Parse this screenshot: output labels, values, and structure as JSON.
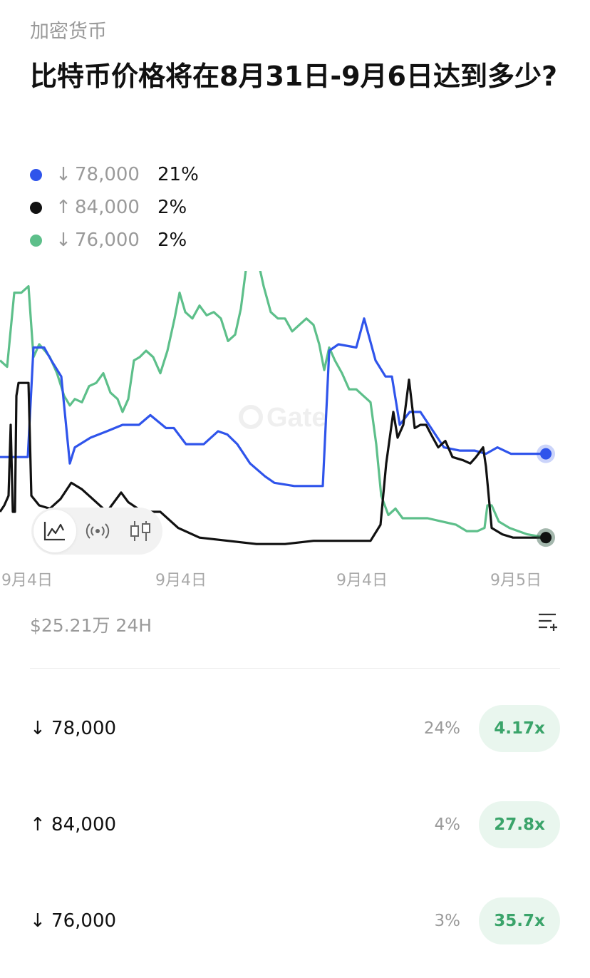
{
  "header": {
    "category": "加密货币",
    "title": "比特币价格将在8月31日-9月6日达到多少?"
  },
  "legend": [
    {
      "arrow": "↓",
      "value": "78,000",
      "pct": "21%",
      "color": "#2f54eb"
    },
    {
      "arrow": "↑",
      "value": "84,000",
      "pct": "2%",
      "color": "#111111"
    },
    {
      "arrow": "↓",
      "value": "76,000",
      "pct": "2%",
      "color": "#5dbf8a"
    }
  ],
  "chart_data": {
    "type": "line",
    "x_tick_labels": [
      "9月4日",
      "9月4日",
      "9月4日",
      "9月5日"
    ],
    "watermark": "Gate",
    "series": [
      {
        "color": "#2f54eb",
        "points": [
          [
            0,
            0.17
          ],
          [
            39,
            0.17
          ],
          [
            47,
            0.51
          ],
          [
            62,
            0.51
          ],
          [
            72,
            0.47
          ],
          [
            86,
            0.42
          ],
          [
            98,
            0.15
          ],
          [
            105,
            0.2
          ],
          [
            127,
            0.23
          ],
          [
            150,
            0.25
          ],
          [
            172,
            0.27
          ],
          [
            195,
            0.27
          ],
          [
            211,
            0.3
          ],
          [
            233,
            0.26
          ],
          [
            244,
            0.26
          ],
          [
            261,
            0.21
          ],
          [
            286,
            0.21
          ],
          [
            306,
            0.25
          ],
          [
            319,
            0.24
          ],
          [
            333,
            0.21
          ],
          [
            351,
            0.15
          ],
          [
            372,
            0.11
          ],
          [
            385,
            0.09
          ],
          [
            413,
            0.08
          ],
          [
            453,
            0.08
          ],
          [
            462,
            0.5
          ],
          [
            475,
            0.52
          ],
          [
            500,
            0.51
          ],
          [
            511,
            0.6
          ],
          [
            527,
            0.47
          ],
          [
            541,
            0.42
          ],
          [
            550,
            0.42
          ],
          [
            561,
            0.27
          ],
          [
            575,
            0.31
          ],
          [
            590,
            0.31
          ],
          [
            623,
            0.2
          ],
          [
            645,
            0.19
          ],
          [
            666,
            0.19
          ],
          [
            682,
            0.18
          ],
          [
            698,
            0.2
          ],
          [
            717,
            0.18
          ],
          [
            740,
            0.18
          ],
          [
            766,
            0.18
          ]
        ]
      },
      {
        "color": "#111111",
        "points": [
          [
            0,
            0.0
          ],
          [
            6,
            0.02
          ],
          [
            12,
            0.05
          ],
          [
            15,
            0.27
          ],
          [
            18,
            0.0
          ],
          [
            21,
            0.0
          ],
          [
            23,
            0.36
          ],
          [
            26,
            0.4
          ],
          [
            32,
            0.4
          ],
          [
            36,
            0.4
          ],
          [
            40,
            0.4
          ],
          [
            44,
            0.05
          ],
          [
            55,
            0.02
          ],
          [
            70,
            0.01
          ],
          [
            85,
            0.04
          ],
          [
            100,
            0.09
          ],
          [
            115,
            0.07
          ],
          [
            130,
            0.04
          ],
          [
            150,
            0.0
          ],
          [
            170,
            0.06
          ],
          [
            180,
            0.03
          ],
          [
            200,
            0.0
          ],
          [
            225,
            0.0
          ],
          [
            250,
            -0.05
          ],
          [
            280,
            -0.08
          ],
          [
            320,
            -0.09
          ],
          [
            360,
            -0.1
          ],
          [
            400,
            -0.1
          ],
          [
            440,
            -0.09
          ],
          [
            480,
            -0.09
          ],
          [
            520,
            -0.09
          ],
          [
            534,
            -0.04
          ],
          [
            542,
            0.15
          ],
          [
            552,
            0.31
          ],
          [
            558,
            0.23
          ],
          [
            566,
            0.27
          ],
          [
            574,
            0.41
          ],
          [
            582,
            0.26
          ],
          [
            590,
            0.27
          ],
          [
            598,
            0.27
          ],
          [
            605,
            0.24
          ],
          [
            615,
            0.2
          ],
          [
            625,
            0.22
          ],
          [
            635,
            0.17
          ],
          [
            650,
            0.16
          ],
          [
            660,
            0.15
          ],
          [
            668,
            0.17
          ],
          [
            678,
            0.2
          ],
          [
            682,
            0.14
          ],
          [
            690,
            -0.05
          ],
          [
            705,
            -0.07
          ],
          [
            720,
            -0.08
          ],
          [
            745,
            -0.08
          ],
          [
            766,
            -0.08
          ]
        ]
      },
      {
        "color": "#5dbf8a",
        "points": [
          [
            0,
            0.47
          ],
          [
            10,
            0.45
          ],
          [
            20,
            0.68
          ],
          [
            30,
            0.68
          ],
          [
            40,
            0.7
          ],
          [
            47,
            0.48
          ],
          [
            55,
            0.52
          ],
          [
            63,
            0.5
          ],
          [
            70,
            0.48
          ],
          [
            80,
            0.43
          ],
          [
            90,
            0.36
          ],
          [
            98,
            0.33
          ],
          [
            105,
            0.35
          ],
          [
            115,
            0.34
          ],
          [
            125,
            0.39
          ],
          [
            135,
            0.4
          ],
          [
            145,
            0.43
          ],
          [
            155,
            0.37
          ],
          [
            165,
            0.35
          ],
          [
            172,
            0.31
          ],
          [
            180,
            0.35
          ],
          [
            188,
            0.47
          ],
          [
            196,
            0.48
          ],
          [
            205,
            0.5
          ],
          [
            215,
            0.48
          ],
          [
            225,
            0.43
          ],
          [
            235,
            0.5
          ],
          [
            245,
            0.6
          ],
          [
            252,
            0.68
          ],
          [
            260,
            0.62
          ],
          [
            270,
            0.6
          ],
          [
            280,
            0.64
          ],
          [
            290,
            0.61
          ],
          [
            300,
            0.62
          ],
          [
            310,
            0.6
          ],
          [
            320,
            0.53
          ],
          [
            330,
            0.55
          ],
          [
            338,
            0.63
          ],
          [
            345,
            0.75
          ],
          [
            352,
            0.84
          ],
          [
            360,
            0.8
          ],
          [
            370,
            0.7
          ],
          [
            380,
            0.62
          ],
          [
            390,
            0.6
          ],
          [
            400,
            0.6
          ],
          [
            410,
            0.56
          ],
          [
            420,
            0.58
          ],
          [
            430,
            0.6
          ],
          [
            440,
            0.58
          ],
          [
            448,
            0.52
          ],
          [
            455,
            0.44
          ],
          [
            462,
            0.51
          ],
          [
            470,
            0.47
          ],
          [
            480,
            0.43
          ],
          [
            490,
            0.38
          ],
          [
            500,
            0.38
          ],
          [
            510,
            0.36
          ],
          [
            520,
            0.34
          ],
          [
            528,
            0.21
          ],
          [
            535,
            0.05
          ],
          [
            545,
            -0.01
          ],
          [
            555,
            0.01
          ],
          [
            565,
            -0.02
          ],
          [
            580,
            -0.02
          ],
          [
            600,
            -0.02
          ],
          [
            620,
            -0.03
          ],
          [
            640,
            -0.04
          ],
          [
            655,
            -0.06
          ],
          [
            670,
            -0.06
          ],
          [
            680,
            -0.05
          ],
          [
            684,
            0.02
          ],
          [
            690,
            0.02
          ],
          [
            700,
            -0.03
          ],
          [
            715,
            -0.05
          ],
          [
            740,
            -0.07
          ],
          [
            766,
            -0.08
          ]
        ]
      }
    ]
  },
  "toolbar": {
    "items": [
      {
        "name": "line-chart-icon",
        "active": true
      },
      {
        "name": "broadcast-icon",
        "active": false
      },
      {
        "name": "candlestick-icon",
        "active": false
      }
    ]
  },
  "market": {
    "volume": "$25.21万 24H"
  },
  "outcomes": [
    {
      "label": "↓ 78,000",
      "pct": "24%",
      "payout": "4.17x"
    },
    {
      "label": "↑ 84,000",
      "pct": "4%",
      "payout": "27.8x"
    },
    {
      "label": "↓ 76,000",
      "pct": "3%",
      "payout": "35.7x"
    }
  ]
}
